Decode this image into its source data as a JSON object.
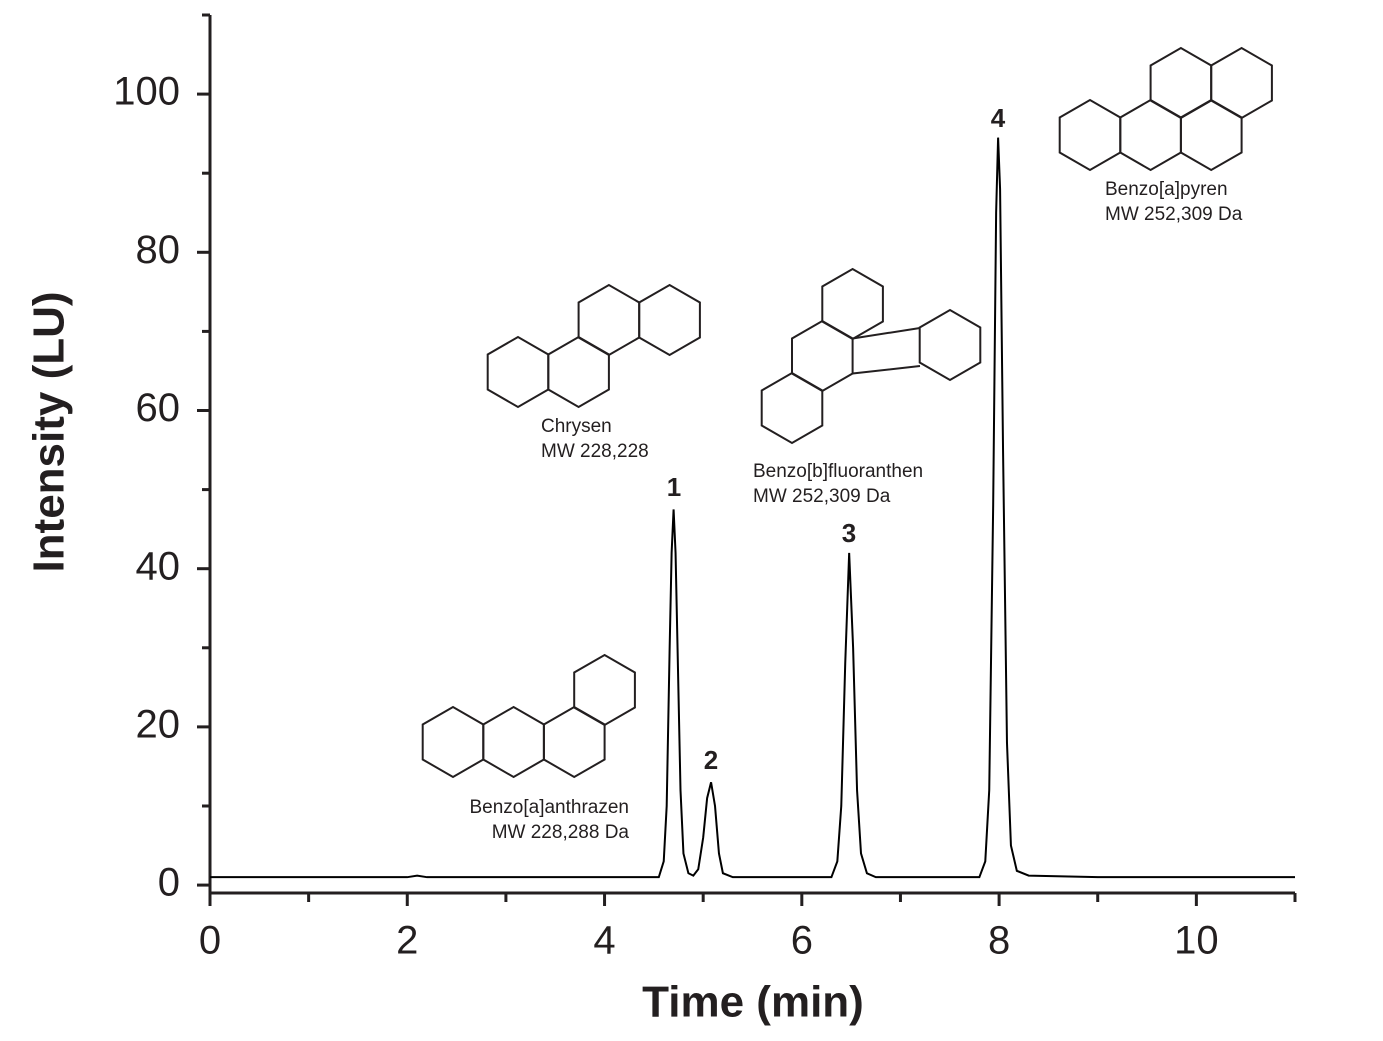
{
  "chart_data": {
    "type": "line",
    "xlabel": "Time (min)",
    "ylabel": "Intensity (LU)",
    "x": [
      0,
      1,
      2,
      2.1,
      2.2,
      3,
      4,
      4.5,
      4.55,
      4.6,
      4.63,
      4.66,
      4.68,
      4.7,
      4.72,
      4.74,
      4.77,
      4.8,
      4.85,
      4.9,
      4.95,
      5.0,
      5.04,
      5.08,
      5.12,
      5.16,
      5.2,
      5.3,
      6.3,
      6.36,
      6.4,
      6.44,
      6.48,
      6.52,
      6.56,
      6.6,
      6.66,
      6.75,
      7.8,
      7.86,
      7.9,
      7.94,
      7.97,
      7.99,
      8.01,
      8.04,
      8.08,
      8.12,
      8.18,
      8.3,
      9,
      10,
      11
    ],
    "series": [
      {
        "color": "#000000",
        "values": [
          1,
          1,
          1,
          1.2,
          1,
          1,
          1,
          1,
          1,
          3,
          10,
          30,
          42,
          47.5,
          42,
          30,
          12,
          4,
          1.5,
          1.2,
          2,
          6,
          11,
          13,
          10,
          4,
          1.5,
          1,
          1,
          3,
          10,
          28,
          42,
          30,
          12,
          4,
          1.5,
          1,
          1,
          3,
          12,
          48,
          85,
          94.5,
          88,
          55,
          18,
          5,
          1.8,
          1.2,
          1,
          1,
          1
        ]
      }
    ],
    "xlim": [
      0,
      11
    ],
    "xticks": [
      0,
      2,
      4,
      6,
      8,
      10
    ],
    "xticks_minor": [
      1,
      3,
      5,
      7,
      9,
      11
    ],
    "ylim": [
      -1,
      110
    ],
    "yticks": [
      0,
      20,
      40,
      60,
      80,
      100
    ],
    "yticks_minor": [
      10,
      30,
      50,
      70,
      90,
      110
    ],
    "peak_labels": [
      "1",
      "2",
      "3",
      "4"
    ],
    "compounds": [
      {
        "name": "Benzo[a]anthrazen",
        "mw": "MW 228,288 Da"
      },
      {
        "name": "Chrysen",
        "mw": "MW 228,228"
      },
      {
        "name": "Benzo[b]fluoranthen",
        "mw": "MW 252,309 Da"
      },
      {
        "name": "Benzo[a]pyren",
        "mw": "MW 252,309 Da"
      }
    ]
  }
}
